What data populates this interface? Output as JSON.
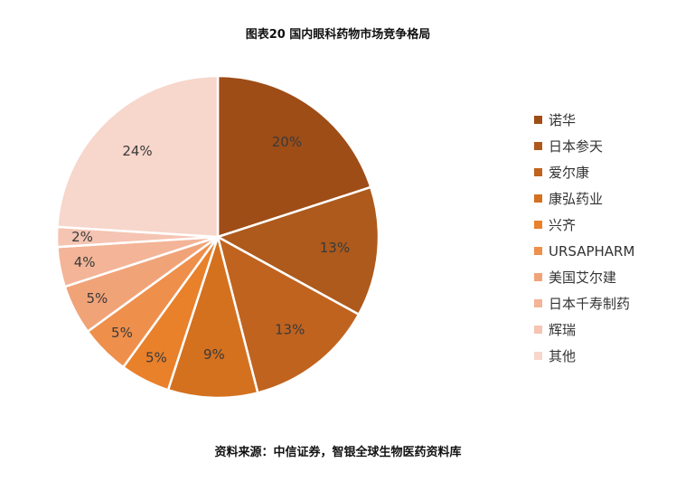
{
  "header": {
    "title": "图表20 国内眼科药物市场竞争格局"
  },
  "footer": {
    "source": "资料来源：中信证券，智银全球生物医药资料库"
  },
  "chart_data": {
    "type": "pie",
    "title": "图表20 国内眼科药物市场竞争格局",
    "start_angle": "12 o'clock",
    "direction": "clockwise",
    "legend_position": "right",
    "slices": [
      {
        "name": "诺华",
        "value": 20,
        "label": "20%",
        "color": "#9e4d17"
      },
      {
        "name": "日本参天",
        "value": 13,
        "label": "13%",
        "color": "#ad5a1c"
      },
      {
        "name": "爱尔康",
        "value": 13,
        "label": "13%",
        "color": "#c0631f"
      },
      {
        "name": "康弘药业",
        "value": 9,
        "label": "9%",
        "color": "#d4711f"
      },
      {
        "name": "兴齐",
        "value": 5,
        "label": "5%",
        "color": "#e9802a"
      },
      {
        "name": "URSAPHARM",
        "value": 5,
        "label": "5%",
        "color": "#ee8f4b"
      },
      {
        "name": "美国艾尔建",
        "value": 5,
        "label": "5%",
        "color": "#f1a378"
      },
      {
        "name": "日本千寿制药",
        "value": 4,
        "label": "4%",
        "color": "#f3b497"
      },
      {
        "name": "辉瑞",
        "value": 2,
        "label": "2%",
        "color": "#f5c4b2"
      },
      {
        "name": "其他",
        "value": 24,
        "label": "24%",
        "color": "#f7d6cb"
      }
    ]
  }
}
